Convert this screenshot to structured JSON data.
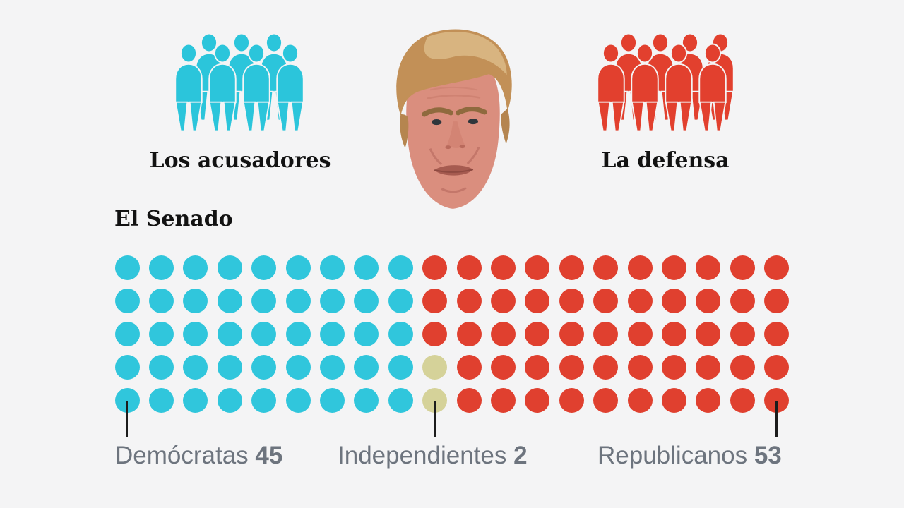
{
  "page": {
    "background": "#f4f4f5"
  },
  "header": {
    "accusers": {
      "label": "Los acusadores",
      "figure_count": 7,
      "color": "#2bc5db",
      "icon": "group-of-people-icon"
    },
    "defense": {
      "label": "La defensa",
      "figure_count": 8,
      "color": "#e2402e",
      "icon": "group-of-people-icon"
    },
    "center_image": "trump-face-photo"
  },
  "senate": {
    "title": "El Senado"
  },
  "chart_data": {
    "type": "waffle",
    "title": "El Senado",
    "rows": 5,
    "cols": 20,
    "total_seats": 100,
    "dot_shape": "circle",
    "legend_position": "bottom",
    "series": [
      {
        "name": "Demócratas",
        "value": 45,
        "color": "#30c6dc",
        "code": "D"
      },
      {
        "name": "Independientes",
        "value": 2,
        "color": "#d5d299",
        "code": "I"
      },
      {
        "name": "Republicanos",
        "value": 53,
        "color": "#e0402f",
        "code": "R"
      }
    ],
    "grid_rows": [
      "DDDDDDDDDRRRRRRRRRRR",
      "DDDDDDDDDRRRRRRRRRRR",
      "DDDDDDDDDRRRRRRRRRRR",
      "DDDDDDDDDIRRRRRRRRRR",
      "DDDDDDDDDIRRRRRRRRRR"
    ]
  }
}
